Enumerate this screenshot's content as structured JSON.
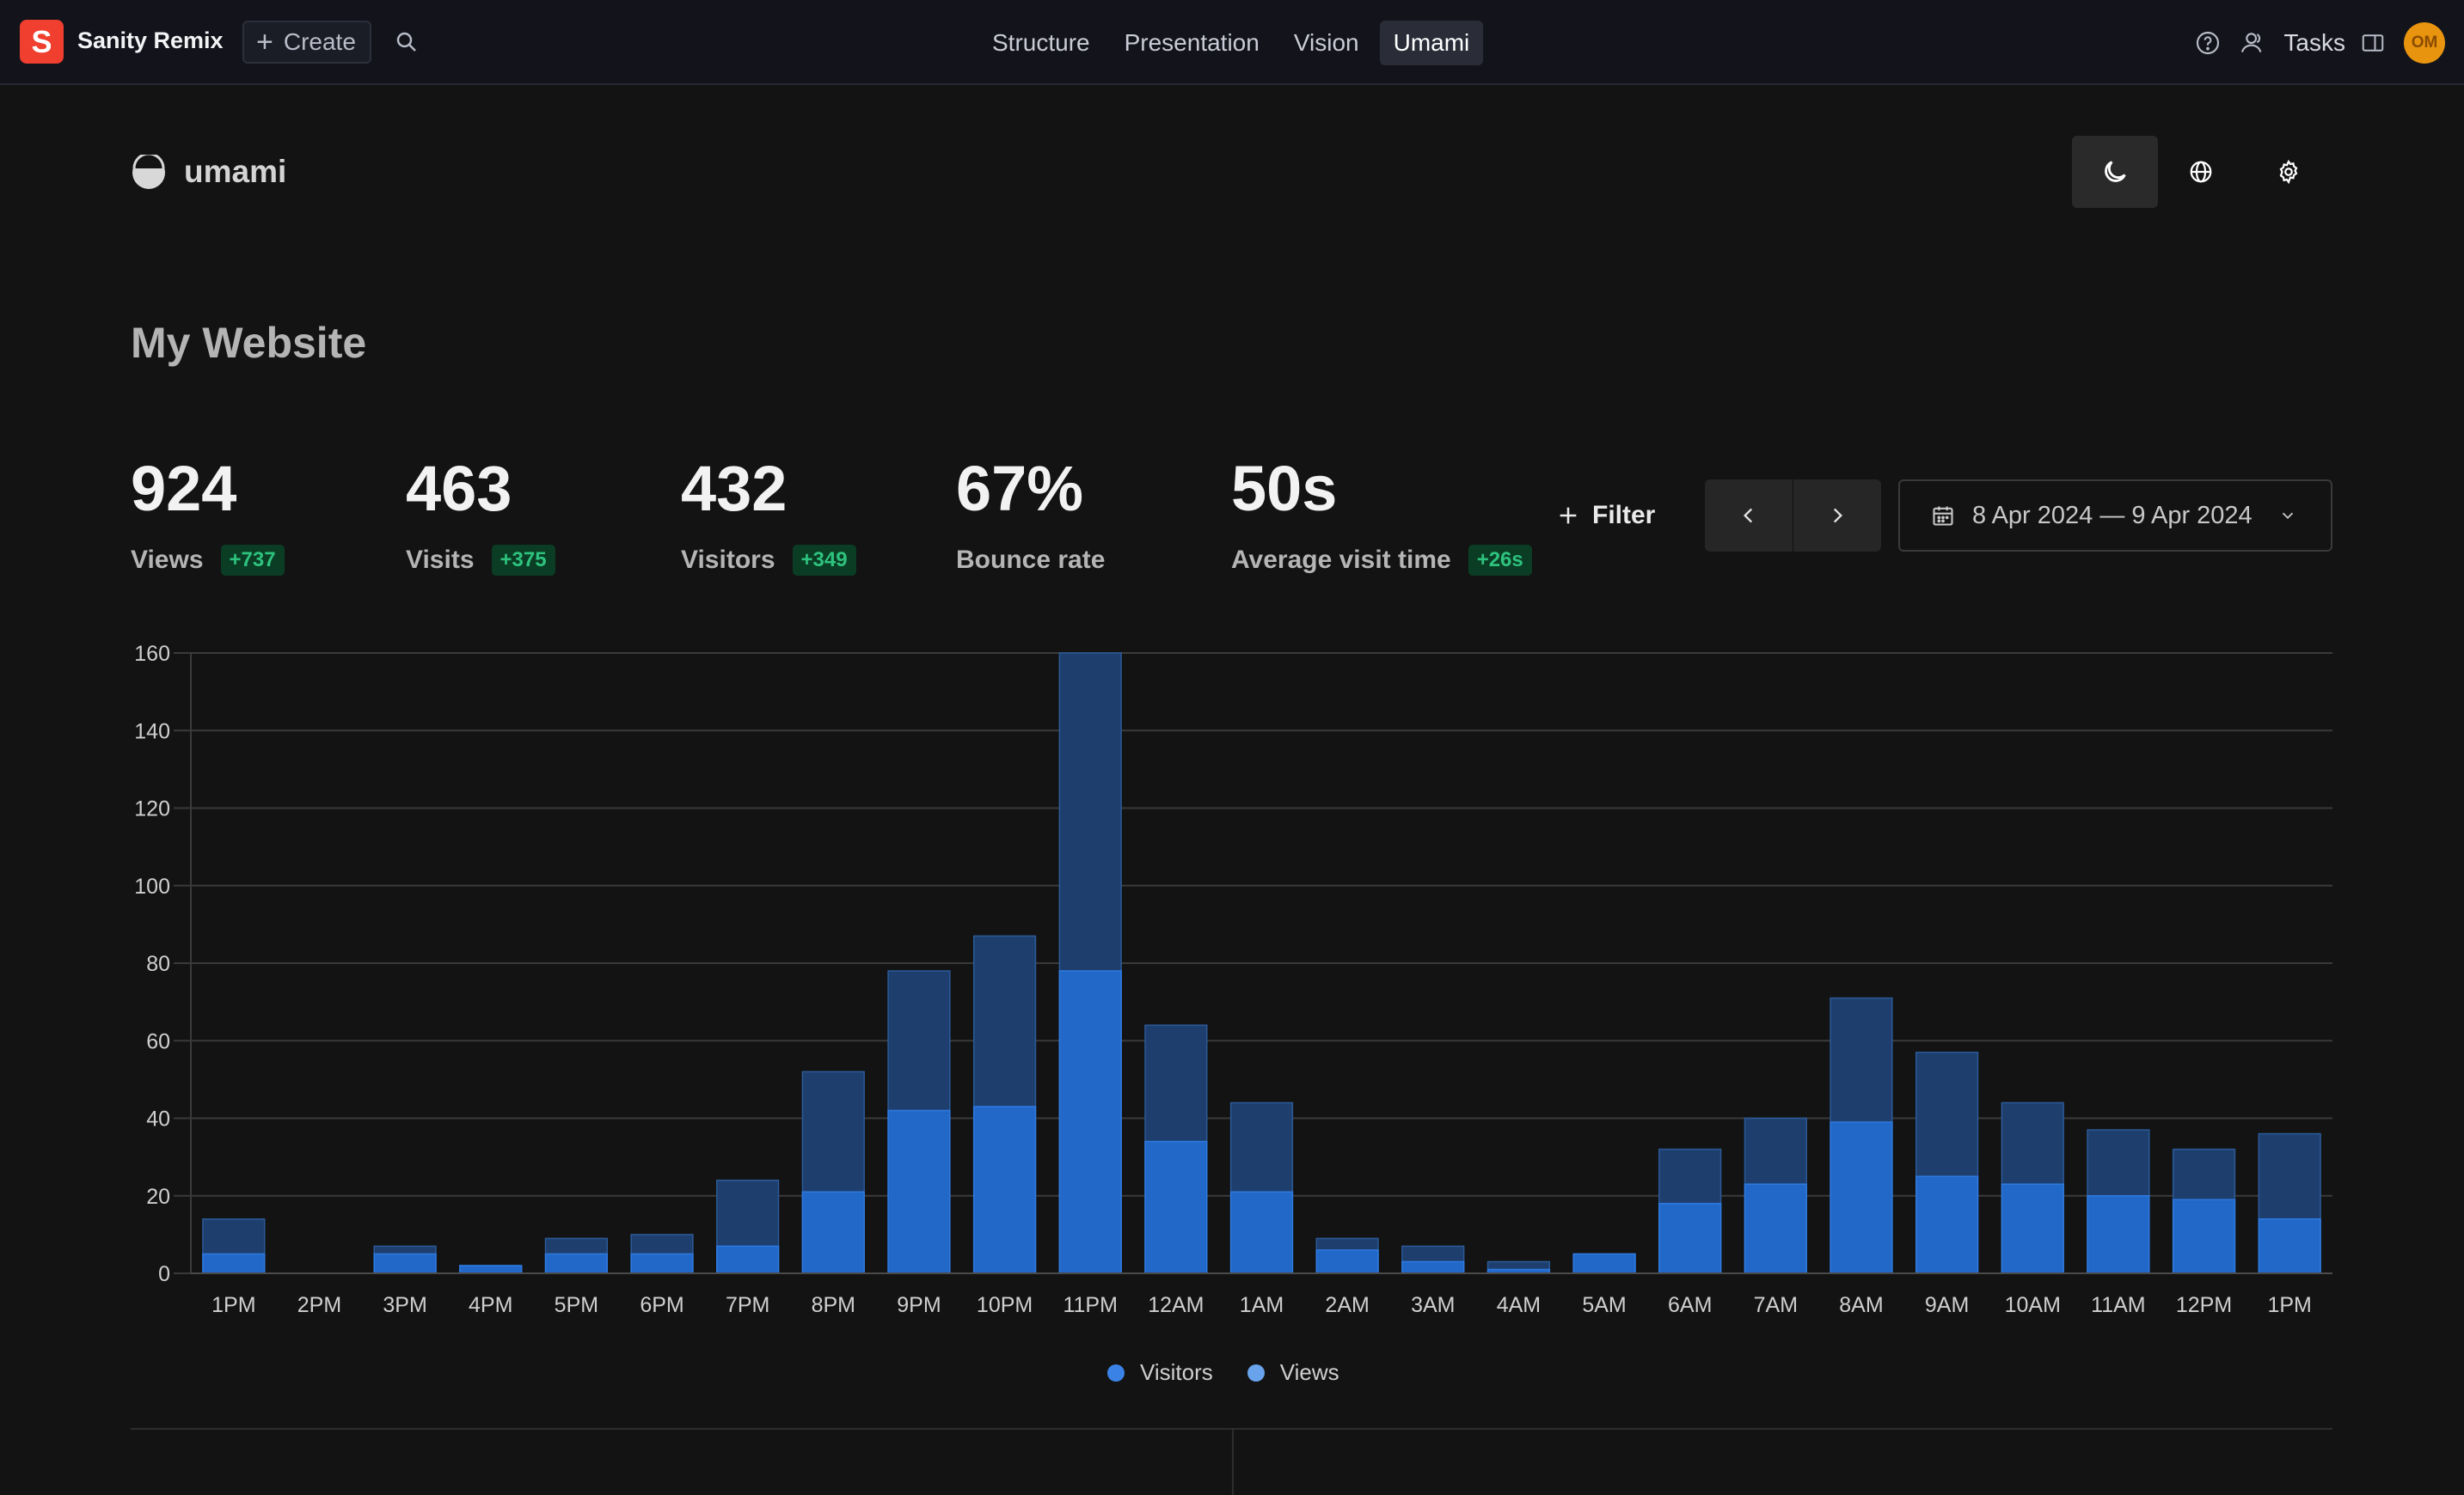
{
  "app": {
    "brand": "Sanity Remix",
    "brand_letter": "S",
    "create_label": "Create",
    "tabs": [
      {
        "label": "Structure"
      },
      {
        "label": "Presentation"
      },
      {
        "label": "Vision"
      },
      {
        "label": "Umami"
      }
    ],
    "tasks_label": "Tasks",
    "avatar_initials": "OM"
  },
  "umami": {
    "name": "umami",
    "site_title": "My Website",
    "metrics": [
      {
        "value": "924",
        "label": "Views",
        "change": "+737"
      },
      {
        "value": "463",
        "label": "Visits",
        "change": "+375"
      },
      {
        "value": "432",
        "label": "Visitors",
        "change": "+349"
      },
      {
        "value": "67%",
        "label": "Bounce rate",
        "change": ""
      },
      {
        "value": "50s",
        "label": "Average visit time",
        "change": "+26s"
      }
    ],
    "filter_label": "Filter",
    "date_range": "8 Apr 2024 — 9 Apr 2024"
  },
  "colors": {
    "accent_views": "#1e3f6e",
    "accent_visitors": "#2168c8",
    "badge_bg": "#0a3d24",
    "badge_text": "#2ec27e"
  },
  "chart_data": {
    "type": "bar",
    "categories": [
      "1PM",
      "2PM",
      "3PM",
      "4PM",
      "5PM",
      "6PM",
      "7PM",
      "8PM",
      "9PM",
      "10PM",
      "11PM",
      "12AM",
      "1AM",
      "2AM",
      "3AM",
      "4AM",
      "5AM",
      "6AM",
      "7AM",
      "8AM",
      "9AM",
      "10AM",
      "11AM",
      "12PM",
      "1PM"
    ],
    "series": [
      {
        "name": "Visitors",
        "values": [
          5,
          0,
          5,
          2,
          5,
          5,
          7,
          21,
          42,
          43,
          78,
          34,
          21,
          6,
          3,
          1,
          5,
          18,
          23,
          39,
          25,
          23,
          20,
          19,
          14
        ]
      },
      {
        "name": "Views",
        "values": [
          14,
          0,
          7,
          2,
          9,
          10,
          24,
          52,
          78,
          87,
          160,
          64,
          44,
          9,
          7,
          3,
          5,
          32,
          40,
          71,
          57,
          44,
          37,
          32,
          36
        ]
      }
    ],
    "ylim": [
      0,
      160
    ],
    "yticks": [
      0,
      20,
      40,
      60,
      80,
      100,
      120,
      140,
      160
    ],
    "ytick_labels": [
      "0",
      "20",
      "40",
      "60",
      "80",
      "100",
      "120",
      "140",
      "160"
    ],
    "legend": [
      "Visitors",
      "Views"
    ],
    "legend_position": "bottom-center",
    "grid": true,
    "stacked_overlay": true
  }
}
